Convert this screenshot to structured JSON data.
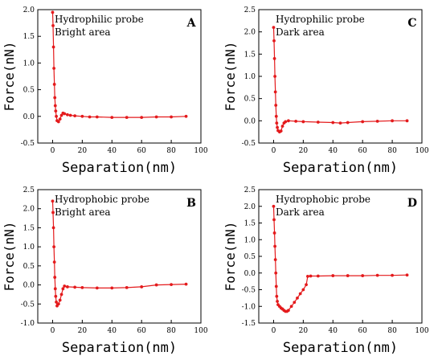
{
  "chart_data": [
    {
      "type": "line",
      "panel_label": "A",
      "annotation": [
        "Hydrophilic probe",
        "Bright area"
      ],
      "xlabel": "Separation(nm)",
      "ylabel": "Force(nN)",
      "xlim": [
        -10,
        100
      ],
      "ylim": [
        -0.5,
        2.0
      ],
      "xticks": [
        0,
        20,
        40,
        60,
        80,
        100
      ],
      "yticks": [
        -0.5,
        0.0,
        0.5,
        1.0,
        1.5,
        2.0
      ],
      "ytick_labels": [
        "-0.5",
        "0.0",
        "0.5",
        "1.0",
        "1.5",
        "2.0"
      ],
      "series": [
        {
          "color": "#e41a1c",
          "x": [
            0,
            0.3,
            0.6,
            0.9,
            1.2,
            1.5,
            1.8,
            2.1,
            2.5,
            3,
            4,
            5,
            6,
            7,
            8,
            10,
            12,
            15,
            20,
            25,
            30,
            40,
            50,
            60,
            70,
            80,
            90
          ],
          "y": [
            1.95,
            1.7,
            1.3,
            0.9,
            0.6,
            0.35,
            0.2,
            0.1,
            0.0,
            -0.08,
            -0.1,
            -0.05,
            0.02,
            0.06,
            0.05,
            0.03,
            0.02,
            0.01,
            0.0,
            -0.01,
            -0.01,
            -0.02,
            -0.02,
            -0.02,
            -0.01,
            -0.01,
            0.0
          ]
        }
      ]
    },
    {
      "type": "line",
      "panel_label": "C",
      "annotation": [
        "Hydrophilic probe",
        "Dark area"
      ],
      "xlabel": "Separation(nm)",
      "ylabel": "Force(nN)",
      "xlim": [
        -10,
        100
      ],
      "ylim": [
        -0.5,
        2.5
      ],
      "xticks": [
        0,
        20,
        40,
        60,
        80,
        100
      ],
      "yticks": [
        -0.5,
        0.0,
        0.5,
        1.0,
        1.5,
        2.0,
        2.5
      ],
      "ytick_labels": [
        "-0.5",
        "0.0",
        "0.5",
        "1.0",
        "1.5",
        "2.0",
        "2.5"
      ],
      "series": [
        {
          "color": "#e41a1c",
          "x": [
            0,
            0.3,
            0.6,
            0.9,
            1.2,
            1.5,
            1.8,
            2.1,
            2.5,
            3,
            4,
            5,
            6,
            7,
            8,
            10,
            15,
            20,
            30,
            40,
            45,
            50,
            60,
            70,
            80,
            90
          ],
          "y": [
            2.1,
            1.8,
            1.4,
            1.0,
            0.65,
            0.35,
            0.1,
            -0.05,
            -0.15,
            -0.22,
            -0.25,
            -0.23,
            -0.12,
            -0.05,
            -0.02,
            0.0,
            -0.01,
            -0.02,
            -0.03,
            -0.04,
            -0.05,
            -0.04,
            -0.02,
            -0.01,
            0.0,
            0.0
          ]
        }
      ]
    },
    {
      "type": "line",
      "panel_label": "B",
      "annotation": [
        "Hydrophobic probe",
        "Bright area"
      ],
      "xlabel": "Separation(nm)",
      "ylabel": "Force(nN)",
      "xlim": [
        -10,
        100
      ],
      "ylim": [
        -1.0,
        2.5
      ],
      "xticks": [
        0,
        20,
        40,
        60,
        80,
        100
      ],
      "yticks": [
        -1.0,
        -0.5,
        0.0,
        0.5,
        1.0,
        1.5,
        2.0,
        2.5
      ],
      "ytick_labels": [
        "-1.0",
        "-0.5",
        "0.0",
        "0.5",
        "1.0",
        "1.5",
        "2.0",
        "2.5"
      ],
      "series": [
        {
          "color": "#e41a1c",
          "x": [
            0,
            0.3,
            0.6,
            0.9,
            1.2,
            1.5,
            1.8,
            2.1,
            2.5,
            3,
            4,
            5,
            6,
            7,
            8,
            10,
            15,
            20,
            30,
            40,
            50,
            60,
            70,
            80,
            90
          ],
          "y": [
            2.2,
            1.9,
            1.5,
            1.0,
            0.6,
            0.2,
            -0.1,
            -0.3,
            -0.45,
            -0.55,
            -0.5,
            -0.4,
            -0.25,
            -0.1,
            -0.03,
            -0.05,
            -0.06,
            -0.07,
            -0.08,
            -0.08,
            -0.07,
            -0.05,
            0.0,
            0.01,
            0.02
          ]
        }
      ]
    },
    {
      "type": "line",
      "panel_label": "D",
      "annotation": [
        "Hydrophobic probe",
        "Dark area"
      ],
      "xlabel": "Separation(nm)",
      "ylabel": "Force(nN)",
      "xlim": [
        -10,
        100
      ],
      "ylim": [
        -1.5,
        2.5
      ],
      "xticks": [
        0,
        20,
        40,
        60,
        80,
        100
      ],
      "yticks": [
        -1.5,
        -1.0,
        -0.5,
        0.0,
        0.5,
        1.0,
        1.5,
        2.0,
        2.5
      ],
      "ytick_labels": [
        "-1.5",
        "-1.0",
        "-0.5",
        "0.0",
        "0.5",
        "1.0",
        "1.5",
        "2.0",
        "2.5"
      ],
      "series": [
        {
          "color": "#e41a1c",
          "x": [
            0,
            0.3,
            0.6,
            0.9,
            1.2,
            1.5,
            1.8,
            2.1,
            2.5,
            3,
            4,
            5,
            6,
            7,
            8,
            9,
            10,
            12,
            14,
            16,
            18,
            20,
            22,
            23,
            25,
            30,
            40,
            50,
            60,
            70,
            80,
            90
          ],
          "y": [
            2.0,
            1.6,
            1.2,
            0.8,
            0.4,
            0.0,
            -0.4,
            -0.7,
            -0.85,
            -0.95,
            -1.0,
            -1.05,
            -1.08,
            -1.12,
            -1.15,
            -1.15,
            -1.12,
            -1.0,
            -0.88,
            -0.75,
            -0.62,
            -0.5,
            -0.35,
            -0.1,
            -0.09,
            -0.09,
            -0.08,
            -0.08,
            -0.08,
            -0.07,
            -0.07,
            -0.06
          ]
        }
      ]
    }
  ]
}
